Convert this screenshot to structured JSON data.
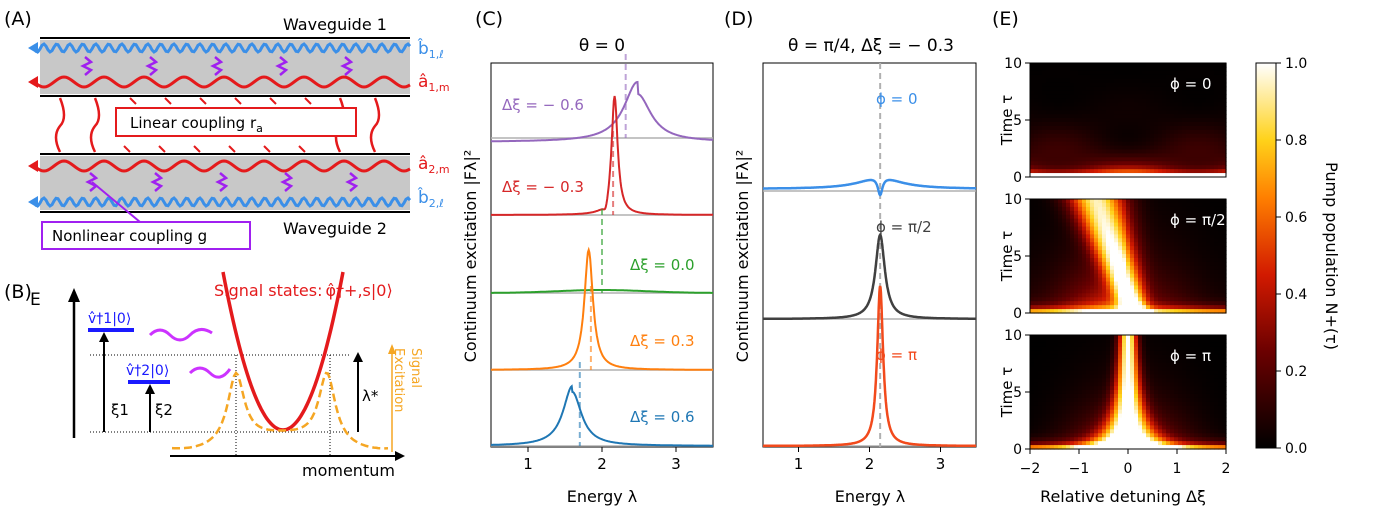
{
  "panel_labels": {
    "A": "(A)",
    "B": "(B)",
    "C": "(C)",
    "D": "(D)",
    "E": "(E)"
  },
  "panel_a": {
    "waveguide1": "Waveguide 1",
    "waveguide2": "Waveguide 2",
    "linear_coupling": "Linear coupling r",
    "linear_coupling_sub": "a",
    "nonlinear_coupling": "Nonlinear coupling g",
    "b1_label": "b̂",
    "b1_sub": "1,ℓ",
    "a1_label": "â",
    "a1_sub": "1,m",
    "a2_label": "â",
    "a2_sub": "2,m",
    "b2_label": "b̂",
    "b2_sub": "2,ℓ",
    "colors": {
      "blue": "#3b8fe8",
      "red": "#e41a1c",
      "purple": "#a020f0",
      "gray": "#c8c8c8"
    }
  },
  "panel_b": {
    "e_label": "E",
    "momentum_label": "momentum",
    "signal_states": "Signal states:",
    "signal_op": "φ̂†+,s|0⟩",
    "v1": "v̂†1|0⟩",
    "v2": "v̂†2|0⟩",
    "xi1": "ξ1",
    "xi2": "ξ2",
    "lambda_star": "λ*",
    "signal_excitation_1": "Signal",
    "signal_excitation_2": "Excitation"
  },
  "chart_data": [
    {
      "id": "C",
      "type": "line",
      "title": "θ = 0",
      "xlabel": "Energy λ",
      "ylabel": "Continuum excitation |Fλ|²",
      "xlim": [
        0.5,
        3.5
      ],
      "xticks": [
        1,
        2,
        3
      ],
      "series": [
        {
          "name": "Δξ = − 0.6",
          "color": "#9467bd",
          "peak": 2.48,
          "width": 0.22,
          "amp": 0.85,
          "shape": "asym",
          "marker": 2.32
        },
        {
          "name": "Δξ = − 0.3",
          "color": "#d62728",
          "peak": 2.17,
          "width": 0.05,
          "amp": 1.15,
          "shape": "fano",
          "marker": 2.15
        },
        {
          "name": "Δξ = 0.0",
          "color": "#2ca02c",
          "peak": 2.0,
          "width": 0.6,
          "amp": 0.1,
          "shape": "broad",
          "marker": 2.0
        },
        {
          "name": "Δξ = 0.3",
          "color": "#ff7f0e",
          "peak": 1.82,
          "width": 0.07,
          "amp": 1.05,
          "shape": "fanoL",
          "marker": 1.85
        },
        {
          "name": "Δξ = 0.6",
          "color": "#1f77b4",
          "peak": 1.6,
          "width": 0.15,
          "amp": 0.7,
          "shape": "asymL",
          "marker": 1.7
        }
      ]
    },
    {
      "id": "D",
      "type": "line",
      "title": "θ = π/4, Δξ = − 0.3",
      "xlabel": "Energy λ",
      "ylabel": "Continuum excitation |Fλ|²",
      "xlim": [
        0.5,
        3.5
      ],
      "xticks": [
        1,
        2,
        3
      ],
      "marker": 2.15,
      "series": [
        {
          "name": "ϕ = 0",
          "color": "#3b8fe8",
          "peak": 2.15,
          "shape": "dip"
        },
        {
          "name": "ϕ = π/2",
          "color": "#404040",
          "peak": 2.15,
          "shape": "peakmid"
        },
        {
          "name": "ϕ = π",
          "color": "#f24a1c",
          "peak": 2.15,
          "shape": "peakbig"
        }
      ]
    },
    {
      "id": "E",
      "type": "heatmap",
      "xlabel": "Relative detuning Δξ",
      "ylabel": "Time τ",
      "xlim": [
        -2,
        2
      ],
      "ylim": [
        0,
        10
      ],
      "xticks": [
        -2,
        -1,
        0,
        1,
        2
      ],
      "yticks": [
        0,
        5,
        10
      ],
      "colorbar_label": "Pump population N+(τ)",
      "colorbar_ticks": [
        0.0,
        0.2,
        0.4,
        0.6,
        0.8,
        1.0
      ],
      "panels": [
        {
          "name": "ϕ = 0",
          "mode": 0
        },
        {
          "name": "ϕ = π/2",
          "mode": 1
        },
        {
          "name": "ϕ = π",
          "mode": 2
        }
      ]
    }
  ]
}
